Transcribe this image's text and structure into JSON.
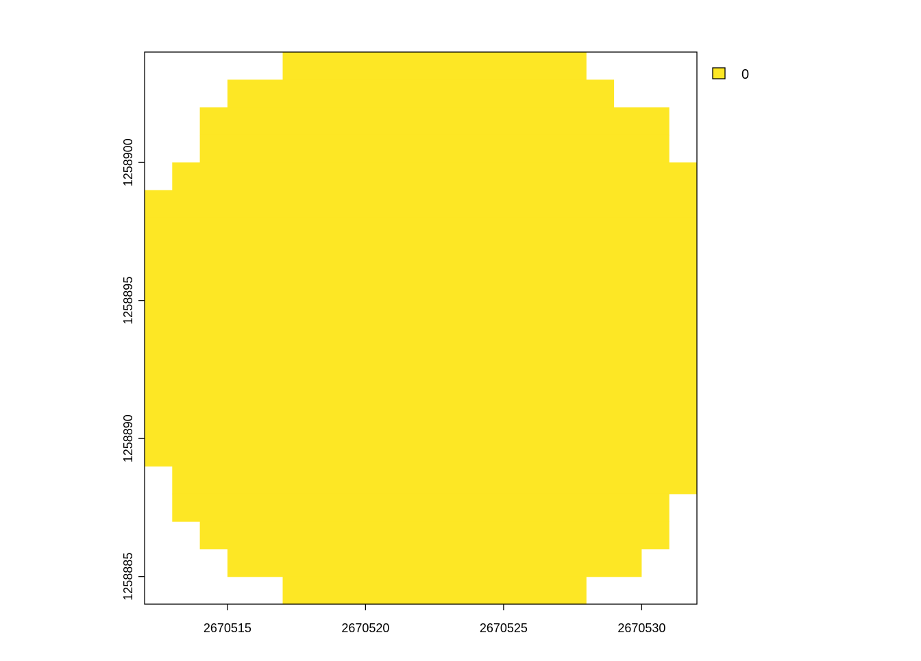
{
  "chart_data": {
    "type": "heatmap",
    "title": "",
    "xlabel": "",
    "ylabel": "",
    "xlim": [
      2670512,
      2670532
    ],
    "ylim": [
      1258884,
      1258904
    ],
    "cell_size": 1,
    "raster_rows": [
      {
        "y_min": 1258903,
        "y_max": 1258904,
        "x_min": 2670517,
        "x_max": 2670528
      },
      {
        "y_min": 1258902,
        "y_max": 1258903,
        "x_min": 2670515,
        "x_max": 2670529
      },
      {
        "y_min": 1258901,
        "y_max": 1258902,
        "x_min": 2670514,
        "x_max": 2670531
      },
      {
        "y_min": 1258900,
        "y_max": 1258901,
        "x_min": 2670514,
        "x_max": 2670531
      },
      {
        "y_min": 1258899,
        "y_max": 1258900,
        "x_min": 2670513,
        "x_max": 2670532
      },
      {
        "y_min": 1258898,
        "y_max": 1258899,
        "x_min": 2670512,
        "x_max": 2670532
      },
      {
        "y_min": 1258889,
        "y_max": 1258898,
        "x_min": 2670512,
        "x_max": 2670532
      },
      {
        "y_min": 1258888,
        "y_max": 1258889,
        "x_min": 2670513,
        "x_max": 2670532
      },
      {
        "y_min": 1258887,
        "y_max": 1258888,
        "x_min": 2670513,
        "x_max": 2670531
      },
      {
        "y_min": 1258886,
        "y_max": 1258887,
        "x_min": 2670514,
        "x_max": 2670531
      },
      {
        "y_min": 1258885,
        "y_max": 1258886,
        "x_min": 2670515,
        "x_max": 2670530
      },
      {
        "y_min": 1258884,
        "y_max": 1258885,
        "x_min": 2670517,
        "x_max": 2670528
      }
    ],
    "x_ticks": [
      2670515,
      2670520,
      2670525,
      2670530
    ],
    "y_ticks": [
      1258885,
      1258890,
      1258895,
      1258900
    ],
    "x_tick_labels": [
      "2670515",
      "2670520",
      "2670525",
      "2670530"
    ],
    "y_tick_labels": [
      "1258885",
      "1258890",
      "1258895",
      "1258900"
    ],
    "legend": {
      "placement": "top-right",
      "entries": [
        {
          "label": "0",
          "color": "#FDE725"
        }
      ]
    },
    "colors": {
      "fill": "#FDE725",
      "frame": "#000000",
      "background": "#ffffff"
    },
    "grid": false
  }
}
